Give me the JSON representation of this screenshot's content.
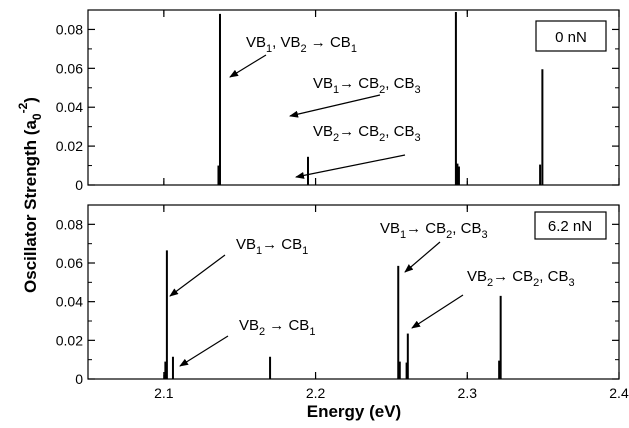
{
  "chart_data": {
    "type": "bar",
    "xlabel": "Energy (eV)",
    "ylabel": "Oscillator Strength (a",
    "ylabel_sub": "0",
    "ylabel_sup": "-2",
    "ylabel_tail": ")",
    "xlim": [
      2.05,
      2.4
    ],
    "x_ticks": [
      "2.1",
      "2.2",
      "2.3",
      "2.4"
    ],
    "x_tick_values": [
      2.1,
      2.2,
      2.3,
      2.4
    ],
    "panels": [
      {
        "label": "0 nN",
        "ylim": [
          0,
          0.09
        ],
        "y_ticks": [
          "0",
          "0.02",
          "0.04",
          "0.06",
          "0.08"
        ],
        "y_tick_values": [
          0,
          0.02,
          0.04,
          0.06,
          0.08
        ],
        "lines": [
          {
            "x": 2.137,
            "y": 0.088
          },
          {
            "x": 2.136,
            "y": 0.01
          },
          {
            "x": 2.195,
            "y": 0.0145
          },
          {
            "x": 2.2925,
            "y": 0.089
          },
          {
            "x": 2.2935,
            "y": 0.011
          },
          {
            "x": 2.2945,
            "y": 0.0095
          },
          {
            "x": 2.348,
            "y": 0.0105
          },
          {
            "x": 2.3495,
            "y": 0.0595
          }
        ],
        "annotations": [
          {
            "parts": [
              "VB",
              "1",
              ", VB",
              "2",
              " → CB",
              "1"
            ]
          },
          {
            "parts": [
              "VB",
              "1",
              "→ CB",
              "2",
              ", CB",
              "3"
            ]
          },
          {
            "parts": [
              "VB",
              "2",
              "→ CB",
              "2",
              ", CB",
              "3"
            ]
          }
        ]
      },
      {
        "label": "6.2 nN",
        "ylim": [
          0,
          0.09
        ],
        "y_ticks": [
          "0",
          "0.02",
          "0.04",
          "0.06",
          "0.08"
        ],
        "y_tick_values": [
          0,
          0.02,
          0.04,
          0.06,
          0.08
        ],
        "lines": [
          {
            "x": 2.102,
            "y": 0.0665
          },
          {
            "x": 2.101,
            "y": 0.009
          },
          {
            "x": 2.106,
            "y": 0.0115
          },
          {
            "x": 2.17,
            "y": 0.0115
          },
          {
            "x": 2.2545,
            "y": 0.0585
          },
          {
            "x": 2.2555,
            "y": 0.009
          },
          {
            "x": 2.26,
            "y": 0.0085
          },
          {
            "x": 2.2608,
            "y": 0.0235
          },
          {
            "x": 2.321,
            "y": 0.0095
          },
          {
            "x": 2.322,
            "y": 0.043
          }
        ],
        "annotations": [
          {
            "parts": [
              "VB",
              "1",
              "→ CB",
              "1"
            ]
          },
          {
            "parts": [
              "VB",
              "2",
              " → CB",
              "1"
            ]
          },
          {
            "parts": [
              "VB",
              "1",
              "→ CB",
              "2",
              ", CB",
              "3"
            ]
          },
          {
            "parts": [
              "VB",
              "2",
              "→ CB",
              "2",
              ", CB",
              "3"
            ]
          }
        ]
      }
    ]
  }
}
